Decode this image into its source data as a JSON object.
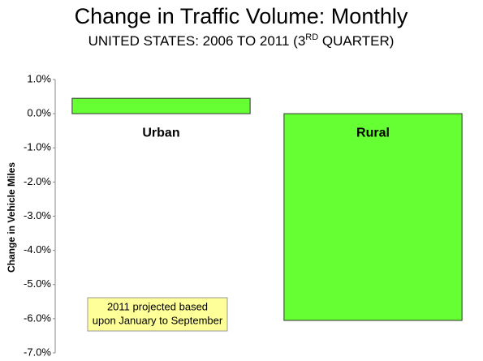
{
  "chart_data": {
    "type": "bar",
    "title": "Change in Traffic Volume: Monthly",
    "subtitle": [
      "UNITED STATES: 2006 TO 2011 (3",
      "RD",
      " QUARTER)"
    ],
    "y_label": "Change in Vehicle Miles",
    "annotation": [
      "2011 projected based",
      "upon January to September"
    ],
    "categories": [
      "Urban",
      "Rural"
    ],
    "values": [
      0.45,
      -6.05
    ],
    "color": "#66ff33",
    "ylim": [
      -7,
      1
    ],
    "yticks": [
      {
        "value": 1,
        "label": "1.0%"
      },
      {
        "value": 0,
        "label": "0.0%"
      },
      {
        "value": -1,
        "label": "-1.0%"
      },
      {
        "value": -2,
        "label": "-2.0%"
      },
      {
        "value": -3,
        "label": "-3.0%"
      },
      {
        "value": -4,
        "label": "-4.0%"
      },
      {
        "value": -5,
        "label": "-5.0%"
      },
      {
        "value": -6,
        "label": "-6.0%"
      },
      {
        "value": -7,
        "label": "-7.0%"
      }
    ],
    "grid": false
  }
}
